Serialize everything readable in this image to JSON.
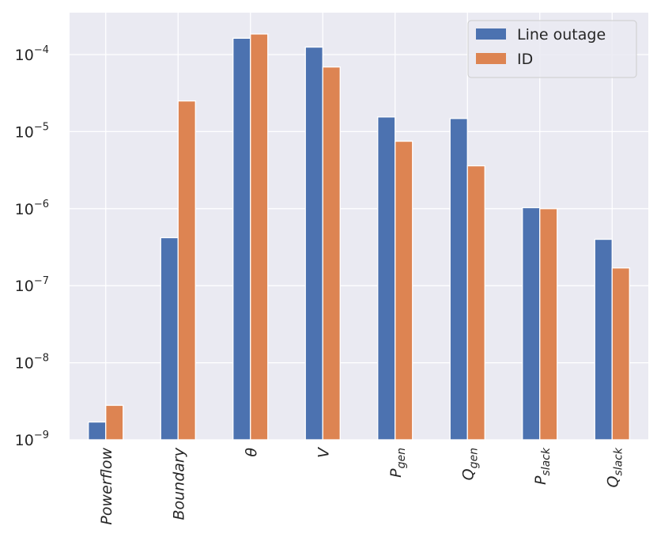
{
  "colors": {
    "background": "#eaeaf2",
    "grid": "#ffffff",
    "line_outage": "#4c72b0",
    "id": "#dd8452",
    "text": "#262626"
  },
  "chart_data": {
    "type": "bar",
    "log_scale_y": true,
    "grid": true,
    "legend_position": "top-right",
    "ylim": [
      1e-09,
      0.00035
    ],
    "y_ticks": [
      {
        "value": 1e-09,
        "base": "10",
        "exp": "−9"
      },
      {
        "value": 1e-08,
        "base": "10",
        "exp": "−8"
      },
      {
        "value": 1e-07,
        "base": "10",
        "exp": "−7"
      },
      {
        "value": 1e-06,
        "base": "10",
        "exp": "−6"
      },
      {
        "value": 1e-05,
        "base": "10",
        "exp": "−5"
      },
      {
        "value": 0.0001,
        "base": "10",
        "exp": "−4"
      }
    ],
    "categories": [
      {
        "base": "Powerflow",
        "sub": ""
      },
      {
        "base": "Boundary",
        "sub": ""
      },
      {
        "base": "θ",
        "sub": ""
      },
      {
        "base": "V",
        "sub": ""
      },
      {
        "base": "P",
        "sub": "gen"
      },
      {
        "base": "Q",
        "sub": "gen"
      },
      {
        "base": "P",
        "sub": "slack"
      },
      {
        "base": "Q",
        "sub": "slack"
      }
    ],
    "series": [
      {
        "name": "Line outage",
        "color_key": "line_outage",
        "values": [
          1.7e-09,
          4.2e-07,
          0.000163,
          0.000125,
          1.55e-05,
          1.48e-05,
          1.03e-06,
          4e-07
        ]
      },
      {
        "name": "ID",
        "color_key": "id",
        "values": [
          2.8e-09,
          2.5e-05,
          0.000185,
          6.9e-05,
          7.5e-06,
          3.6e-06,
          1e-06,
          1.7e-07
        ]
      }
    ]
  }
}
